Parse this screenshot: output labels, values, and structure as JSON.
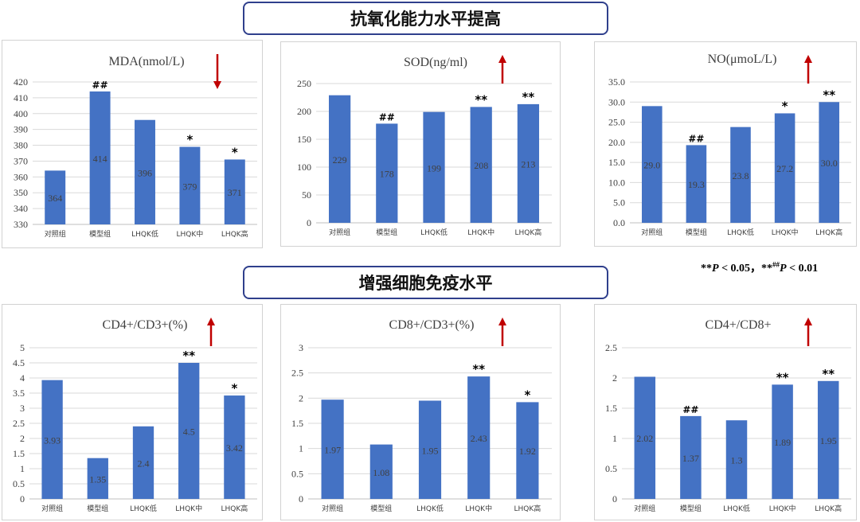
{
  "sections": [
    {
      "title": "抗氧化能力水平提高"
    },
    {
      "title": "增强细胞免疫水平"
    }
  ],
  "significance_note": {
    "stars": "**",
    "p": "P",
    "lt1": " < 0.05，",
    "stars2": "**",
    "hash": "##",
    "p2": "P",
    "lt2": " < 0.01"
  },
  "colors": {
    "bar": "#4472c4",
    "arrow": "#c00000",
    "grid": "#d9d9d9",
    "border": "#2f3f8c"
  },
  "chart_data": [
    {
      "type": "bar",
      "title": "MDA(nmol/L)",
      "categories": [
        "对照组",
        "模型组",
        "LHQK低",
        "LHQK中",
        "LHQK高"
      ],
      "values": [
        364,
        414,
        396,
        379,
        371
      ],
      "data_labels": [
        "364",
        "414",
        "396",
        "379",
        "371"
      ],
      "marks": [
        "",
        "##",
        "",
        "*",
        "*"
      ],
      "ylim": [
        330,
        420
      ],
      "yticks": [
        "330",
        "340",
        "350",
        "360",
        "370",
        "380",
        "390",
        "400",
        "410",
        "420"
      ],
      "trend": "down"
    },
    {
      "type": "bar",
      "title": "SOD(ng/ml)",
      "categories": [
        "对照组",
        "模型组",
        "LHQK低",
        "LHQK中",
        "LHQK高"
      ],
      "values": [
        229,
        178,
        199,
        208,
        213
      ],
      "data_labels": [
        "229",
        "178",
        "199",
        "208",
        "213"
      ],
      "marks": [
        "",
        "##",
        "",
        "**",
        "**"
      ],
      "ylim": [
        0,
        250
      ],
      "yticks": [
        "0",
        "50",
        "100",
        "150",
        "200",
        "250"
      ],
      "trend": "up"
    },
    {
      "type": "bar",
      "title": "NO(μmoL/L)",
      "categories": [
        "对照组",
        "模型组",
        "LHQK低",
        "LHQK中",
        "LHQK高"
      ],
      "values": [
        29.0,
        19.3,
        23.8,
        27.2,
        30.0
      ],
      "data_labels": [
        "29.0",
        "19.3",
        "23.8",
        "27.2",
        "30.0"
      ],
      "marks": [
        "",
        "##",
        "",
        "*",
        "**"
      ],
      "ylim": [
        0,
        35
      ],
      "yticks": [
        "0.0",
        "5.0",
        "10.0",
        "15.0",
        "20.0",
        "25.0",
        "30.0",
        "35.0"
      ],
      "trend": "up"
    },
    {
      "type": "bar",
      "title": "CD4+/CD3+(%)",
      "categories": [
        "对照组",
        "模型组",
        "LHQK低",
        "LHQK中",
        "LHQK高"
      ],
      "values": [
        3.93,
        1.35,
        2.4,
        4.5,
        3.42
      ],
      "data_labels": [
        "3.93",
        "1.35",
        "2.4",
        "4.5",
        "3.42"
      ],
      "marks": [
        "",
        "",
        "",
        "**",
        "*"
      ],
      "ylim": [
        0,
        5
      ],
      "yticks": [
        "0",
        "0.5",
        "1",
        "1.5",
        "2",
        "2.5",
        "3",
        "3.5",
        "4",
        "4.5",
        "5"
      ],
      "trend": "up"
    },
    {
      "type": "bar",
      "title": "CD8+/CD3+(%)",
      "categories": [
        "对照组",
        "模型组",
        "LHQK低",
        "LHQK中",
        "LHQK高"
      ],
      "values": [
        1.97,
        1.08,
        1.95,
        2.43,
        1.92
      ],
      "data_labels": [
        "1.97",
        "1.08",
        "1.95",
        "2.43",
        "1.92"
      ],
      "marks": [
        "",
        "",
        "",
        "**",
        "*"
      ],
      "ylim": [
        0,
        3
      ],
      "yticks": [
        "0",
        "0.5",
        "1",
        "1.5",
        "2",
        "2.5",
        "3"
      ],
      "trend": "up"
    },
    {
      "type": "bar",
      "title": "CD4+/CD8+",
      "categories": [
        "对照组",
        "模型组",
        "LHQK低",
        "LHQK中",
        "LHQK高"
      ],
      "values": [
        2.02,
        1.37,
        1.3,
        1.89,
        1.95
      ],
      "data_labels": [
        "2.02",
        "1.37",
        "1.3",
        "1.89",
        "1.95"
      ],
      "marks": [
        "",
        "##",
        "",
        "**",
        "**"
      ],
      "ylim": [
        0,
        2.5
      ],
      "yticks": [
        "0",
        "0.5",
        "1",
        "1.5",
        "2",
        "2.5"
      ],
      "trend": "up"
    }
  ]
}
